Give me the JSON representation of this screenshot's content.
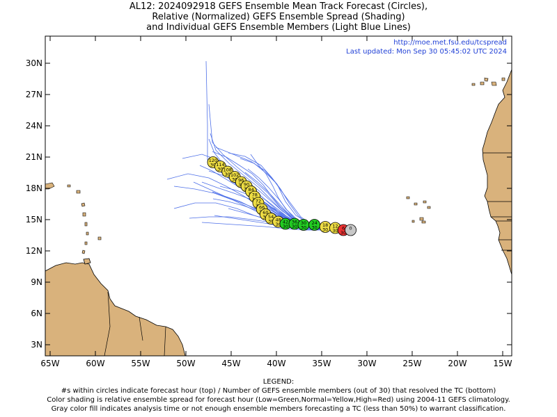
{
  "title": {
    "line1": "AL12: 2024092918 GEFS Ensemble Mean Track Forecast (Circles),",
    "line2": "Relative (Normalized) GEFS Ensemble Spread (Shading)",
    "line3": "and Individual GEFS Ensemble Members (Light Blue Lines)"
  },
  "info": {
    "url": "http://moe.met.fsu.edu/tcspread",
    "updated": "Last updated: Mon Sep 30 05:45:02 UTC 2024"
  },
  "axes": {
    "lat_labels": [
      "30N",
      "27N",
      "24N",
      "21N",
      "18N",
      "15N",
      "12N",
      "9N",
      "6N",
      "3N"
    ],
    "lon_labels": [
      "65W",
      "60W",
      "55W",
      "50W",
      "45W",
      "40W",
      "35W",
      "30W",
      "25W",
      "20W",
      "15W"
    ]
  },
  "colors": {
    "land": "#d9b27c",
    "track_lines": "#4d6fe8",
    "spread_low": "#22cc22",
    "spread_normal": "#eedd44",
    "spread_high": "#ee3333",
    "analysis_gray": "#c8c8c8"
  },
  "track_points": [
    {
      "hour": "0",
      "members": "",
      "lon": -31.8,
      "lat": 14.0,
      "spread": "gray"
    },
    {
      "hour": "6",
      "members": "30",
      "lon": -32.6,
      "lat": 14.0,
      "spread": "high"
    },
    {
      "hour": "12",
      "members": "30",
      "lon": -33.5,
      "lat": 14.2,
      "spread": "normal"
    },
    {
      "hour": "18",
      "members": "30",
      "lon": -34.6,
      "lat": 14.3,
      "spread": "normal"
    },
    {
      "hour": "24",
      "members": "30",
      "lon": -35.8,
      "lat": 14.5,
      "spread": "low"
    },
    {
      "hour": "30",
      "members": "30",
      "lon": -37.0,
      "lat": 14.5,
      "spread": "low"
    },
    {
      "hour": "36",
      "members": "30",
      "lon": -38.0,
      "lat": 14.6,
      "spread": "low"
    },
    {
      "hour": "42",
      "members": "30",
      "lon": -39.0,
      "lat": 14.6,
      "spread": "low"
    },
    {
      "hour": "48",
      "members": "30",
      "lon": -39.8,
      "lat": 14.8,
      "spread": "normal"
    },
    {
      "hour": "54",
      "members": "30",
      "lon": -40.6,
      "lat": 15.1,
      "spread": "normal"
    },
    {
      "hour": "60",
      "members": "30",
      "lon": -41.2,
      "lat": 15.5,
      "spread": "normal"
    },
    {
      "hour": "66",
      "members": "30",
      "lon": -41.6,
      "lat": 16.0,
      "spread": "normal"
    },
    {
      "hour": "72",
      "members": "30",
      "lon": -42.0,
      "lat": 16.6,
      "spread": "normal"
    },
    {
      "hour": "78",
      "members": "30",
      "lon": -42.4,
      "lat": 17.2,
      "spread": "normal"
    },
    {
      "hour": "84",
      "members": "30",
      "lon": -42.8,
      "lat": 17.7,
      "spread": "normal"
    },
    {
      "hour": "90",
      "members": "30",
      "lon": -43.3,
      "lat": 18.2,
      "spread": "normal"
    },
    {
      "hour": "96",
      "members": "30",
      "lon": -43.9,
      "lat": 18.6,
      "spread": "normal"
    },
    {
      "hour": "102",
      "members": "30",
      "lon": -44.6,
      "lat": 19.1,
      "spread": "normal"
    },
    {
      "hour": "108",
      "members": "30",
      "lon": -45.4,
      "lat": 19.6,
      "spread": "normal"
    },
    {
      "hour": "114",
      "members": "30",
      "lon": -46.2,
      "lat": 20.1,
      "spread": "normal"
    },
    {
      "hour": "120",
      "members": "30",
      "lon": -47.0,
      "lat": 20.5,
      "spread": "normal"
    }
  ],
  "legend": {
    "heading": "LEGEND:",
    "line1": "#s within circles indicate forecast hour (top) / Number of GEFS ensemble members (out of 30) that resolved the TC (bottom)",
    "line2": "Color shading is relative ensemble spread for forecast hour (Low=Green,Normal=Yellow,High=Red) using 2004-11 GEFS climatology.",
    "line3": "Gray color fill indicates analysis time or not enough ensemble members forecasting a TC (less than 50%) to warrant classification."
  }
}
